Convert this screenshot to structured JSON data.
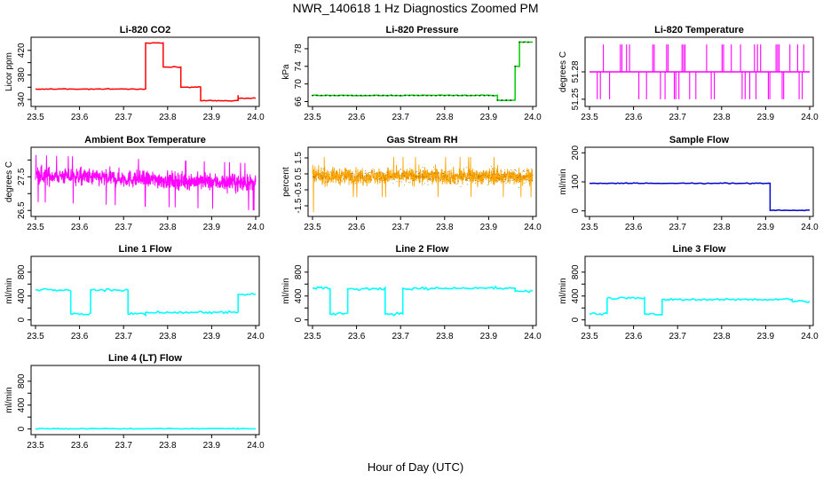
{
  "figure": {
    "title": "NWR_140618  1 Hz Diagnostics Zoomed PM",
    "xlabel": "Hour of Day (UTC)"
  },
  "chart_data": [
    {
      "type": "line",
      "title": "Li-820 CO2",
      "ylabel": "Licor ppm",
      "color": "#ff0000",
      "xlim": [
        23.5,
        24.0
      ],
      "ylim": [
        333,
        437
      ],
      "x_ticks": [
        "23.5",
        "23.6",
        "23.7",
        "23.8",
        "23.9",
        "24.0"
      ],
      "y_ticks": [
        340,
        360,
        380,
        400,
        420
      ],
      "y_tick_labels": [
        "340",
        "",
        "380",
        "",
        "420"
      ],
      "segments": [
        {
          "x": [
            23.5,
            23.75
          ],
          "y": 357
        },
        {
          "x": [
            23.75,
            23.79
          ],
          "y": 432
        },
        {
          "x": [
            23.79,
            23.83
          ],
          "y": 393
        },
        {
          "x": [
            23.83,
            23.875
          ],
          "y": 360
        },
        {
          "x": [
            23.875,
            23.96
          ],
          "y": 338
        },
        {
          "x": [
            23.96,
            24.0
          ],
          "y": 342
        }
      ]
    },
    {
      "type": "line",
      "title": "Li-820 Pressure",
      "ylabel": "kPa",
      "color": "#00cc00",
      "xlim": [
        23.5,
        24.0
      ],
      "ylim": [
        65.5,
        80
      ],
      "x_ticks": [
        "23.5",
        "23.6",
        "23.7",
        "23.8",
        "23.9",
        "24.0"
      ],
      "y_ticks": [
        66,
        70,
        74,
        78
      ],
      "y_tick_labels": [
        "66",
        "70",
        "74",
        "78"
      ],
      "segments": [
        {
          "x": [
            23.5,
            23.92
          ],
          "y": 67.4
        },
        {
          "x": [
            23.92,
            23.96
          ],
          "y": 66.3
        },
        {
          "x": [
            23.96,
            23.97
          ],
          "y": 74
        },
        {
          "x": [
            23.97,
            24.0
          ],
          "y": 79.5
        }
      ]
    },
    {
      "type": "line",
      "title": "Li-820 Temperature",
      "ylabel": "degrees C",
      "color": "#ff00ff",
      "xlim": [
        23.5,
        24.0
      ],
      "ylim": [
        51.245,
        51.315
      ],
      "x_ticks": [
        "23.5",
        "23.6",
        "23.7",
        "23.8",
        "23.9",
        "24.0"
      ],
      "y_ticks": [
        51.25,
        51.28
      ],
      "y_tick_labels": [
        "51.25",
        "51.28"
      ],
      "base": 51.28,
      "spike_high": 51.31,
      "spike_low": 51.25
    },
    {
      "type": "line",
      "title": "Ambient Box Temperature",
      "ylabel": "degrees C",
      "color": "#ff00ff",
      "xlim": [
        23.5,
        24.0
      ],
      "ylim": [
        26.4,
        28.3
      ],
      "x_ticks": [
        "23.5",
        "23.6",
        "23.7",
        "23.8",
        "23.9",
        "24.0"
      ],
      "y_ticks": [
        26.5,
        27.0,
        27.5,
        28.0
      ],
      "y_tick_labels": [
        "26.5",
        "",
        "27.5",
        ""
      ],
      "start": 27.55,
      "end": 27.3
    },
    {
      "type": "scatter",
      "title": "Gas Stream RH",
      "ylabel": "percent",
      "color": "#ffa500",
      "xlim": [
        23.5,
        24.0
      ],
      "ylim": [
        -2,
        2.0
      ],
      "x_ticks": [
        "23.5",
        "23.6",
        "23.7",
        "23.8",
        "23.9",
        "24.0"
      ],
      "y_ticks": [
        -1.5,
        -0.5,
        0.5,
        1.5
      ],
      "y_tick_labels": [
        "-1.5",
        "-0.5",
        "0.5",
        "1.5"
      ],
      "center": 0.35
    },
    {
      "type": "line",
      "title": "Sample Flow",
      "ylabel": "ml/min",
      "color": "#0000cc",
      "xlim": [
        23.5,
        24.0
      ],
      "ylim": [
        -10,
        210
      ],
      "x_ticks": [
        "23.5",
        "23.6",
        "23.7",
        "23.8",
        "23.9",
        "24.0"
      ],
      "y_ticks": [
        0,
        100,
        200
      ],
      "y_tick_labels": [
        "0",
        "100",
        "200"
      ],
      "segments": [
        {
          "x": [
            23.5,
            23.91
          ],
          "y": 95
        },
        {
          "x": [
            23.91,
            24.0
          ],
          "y": 2
        }
      ]
    },
    {
      "type": "line",
      "title": "Line 1 Flow",
      "ylabel": "ml/min",
      "color": "#00ffff",
      "xlim": [
        23.5,
        24.0
      ],
      "ylim": [
        -50,
        1020
      ],
      "x_ticks": [
        "23.5",
        "23.6",
        "23.7",
        "23.8",
        "23.9",
        "24.0"
      ],
      "y_ticks": [
        0,
        200,
        400,
        600,
        800
      ],
      "y_tick_labels": [
        "0",
        "400",
        "800"
      ],
      "segments": [
        {
          "x": [
            23.5,
            23.58
          ],
          "y": 500
        },
        {
          "x": [
            23.58,
            23.625
          ],
          "y": 100
        },
        {
          "x": [
            23.625,
            23.71
          ],
          "y": 500
        },
        {
          "x": [
            23.71,
            23.75
          ],
          "y": 100
        },
        {
          "x": [
            23.75,
            23.96
          ],
          "y": 125
        },
        {
          "x": [
            23.96,
            24.0
          ],
          "y": 430
        }
      ]
    },
    {
      "type": "line",
      "title": "Line 2 Flow",
      "ylabel": "ml/min",
      "color": "#00ffff",
      "xlim": [
        23.5,
        24.0
      ],
      "ylim": [
        -50,
        1020
      ],
      "x_ticks": [
        "23.5",
        "23.6",
        "23.7",
        "23.8",
        "23.9",
        "24.0"
      ],
      "y_ticks": [
        0,
        200,
        400,
        600,
        800
      ],
      "y_tick_labels": [
        "0",
        "400",
        "800"
      ],
      "segments": [
        {
          "x": [
            23.5,
            23.54
          ],
          "y": 530
        },
        {
          "x": [
            23.54,
            23.58
          ],
          "y": 100
        },
        {
          "x": [
            23.58,
            23.665
          ],
          "y": 520
        },
        {
          "x": [
            23.665,
            23.705
          ],
          "y": 100
        },
        {
          "x": [
            23.705,
            23.96
          ],
          "y": 530
        },
        {
          "x": [
            23.96,
            24.0
          ],
          "y": 480
        }
      ]
    },
    {
      "type": "line",
      "title": "Line 3 Flow",
      "ylabel": "ml/min",
      "color": "#00ffff",
      "xlim": [
        23.5,
        24.0
      ],
      "ylim": [
        -50,
        1020
      ],
      "x_ticks": [
        "23.5",
        "23.6",
        "23.7",
        "23.8",
        "23.9",
        "24.0"
      ],
      "y_ticks": [
        0,
        200,
        400,
        600,
        800
      ],
      "y_tick_labels": [
        "0",
        "400",
        "800"
      ],
      "segments": [
        {
          "x": [
            23.5,
            23.54
          ],
          "y": 100
        },
        {
          "x": [
            23.54,
            23.625
          ],
          "y": 360
        },
        {
          "x": [
            23.625,
            23.665
          ],
          "y": 100
        },
        {
          "x": [
            23.665,
            23.96
          ],
          "y": 340
        },
        {
          "x": [
            23.96,
            24.0
          ],
          "y": 310
        }
      ]
    },
    {
      "type": "line",
      "title": "Line 4 (LT) Flow",
      "ylabel": "ml/min",
      "color": "#00ffff",
      "xlim": [
        23.5,
        24.0
      ],
      "ylim": [
        -50,
        1020
      ],
      "x_ticks": [
        "23.5",
        "23.6",
        "23.7",
        "23.8",
        "23.9",
        "24.0"
      ],
      "y_ticks": [
        0,
        200,
        400,
        600,
        800
      ],
      "y_tick_labels": [
        "0",
        "400",
        "800"
      ],
      "segments": [
        {
          "x": [
            23.5,
            24.0
          ],
          "y": 5
        }
      ]
    }
  ]
}
